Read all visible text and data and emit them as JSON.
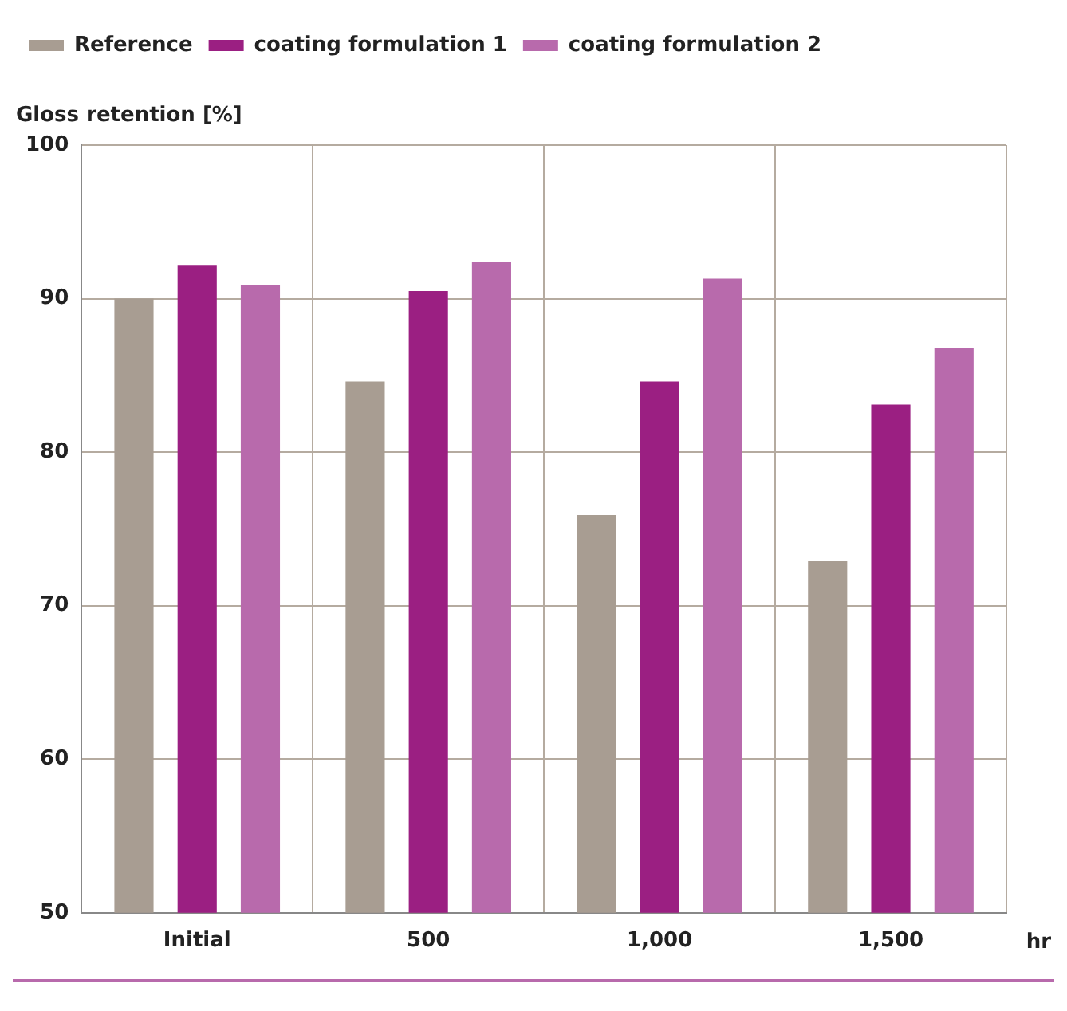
{
  "chart_data": {
    "type": "bar",
    "ylabel": "Gloss retention [%]",
    "xlabel": "hr",
    "categories": [
      "Initial",
      "500",
      "1,000",
      "1,500"
    ],
    "series": [
      {
        "name": "Reference",
        "color": "#a89d92",
        "values": [
          90,
          84.6,
          75.9,
          72.9
        ]
      },
      {
        "name": "coating formulation 1",
        "color": "#9b1f82",
        "values": [
          92.2,
          90.5,
          84.6,
          83.1
        ]
      },
      {
        "name": "coating formulation 2",
        "color": "#b86aac",
        "values": [
          90.9,
          92.4,
          91.3,
          86.8
        ]
      }
    ],
    "ylim": [
      50,
      100
    ],
    "yticks": [
      50,
      60,
      70,
      80,
      90,
      100
    ],
    "grid": true,
    "legend": "top left"
  }
}
